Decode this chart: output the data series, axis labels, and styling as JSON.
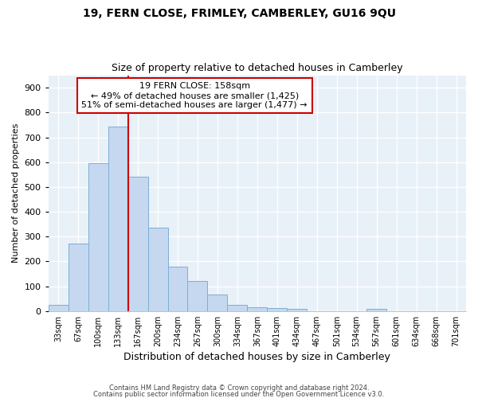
{
  "title1": "19, FERN CLOSE, FRIMLEY, CAMBERLEY, GU16 9QU",
  "title2": "Size of property relative to detached houses in Camberley",
  "xlabel": "Distribution of detached houses by size in Camberley",
  "ylabel": "Number of detached properties",
  "bar_color": "#c5d8f0",
  "bar_edge_color": "#7bafd4",
  "background_color": "#e8f0f8",
  "grid_color": "#ffffff",
  "fig_bg_color": "#ffffff",
  "bins": [
    "33sqm",
    "67sqm",
    "100sqm",
    "133sqm",
    "167sqm",
    "200sqm",
    "234sqm",
    "267sqm",
    "300sqm",
    "334sqm",
    "367sqm",
    "401sqm",
    "434sqm",
    "467sqm",
    "501sqm",
    "534sqm",
    "567sqm",
    "601sqm",
    "634sqm",
    "668sqm",
    "701sqm"
  ],
  "values": [
    25,
    272,
    595,
    742,
    540,
    335,
    178,
    120,
    68,
    25,
    15,
    12,
    10,
    0,
    0,
    0,
    10,
    0,
    0,
    0
  ],
  "ylim": [
    0,
    950
  ],
  "yticks": [
    0,
    100,
    200,
    300,
    400,
    500,
    600,
    700,
    800,
    900
  ],
  "vline_color": "#cc0000",
  "annotation_title": "19 FERN CLOSE: 158sqm",
  "annotation_line1": "← 49% of detached houses are smaller (1,425)",
  "annotation_line2": "51% of semi-detached houses are larger (1,477) →",
  "annotation_box_color": "#ffffff",
  "annotation_box_edge": "#cc0000",
  "footer1": "Contains HM Land Registry data © Crown copyright and database right 2024.",
  "footer2": "Contains public sector information licensed under the Open Government Licence v3.0."
}
